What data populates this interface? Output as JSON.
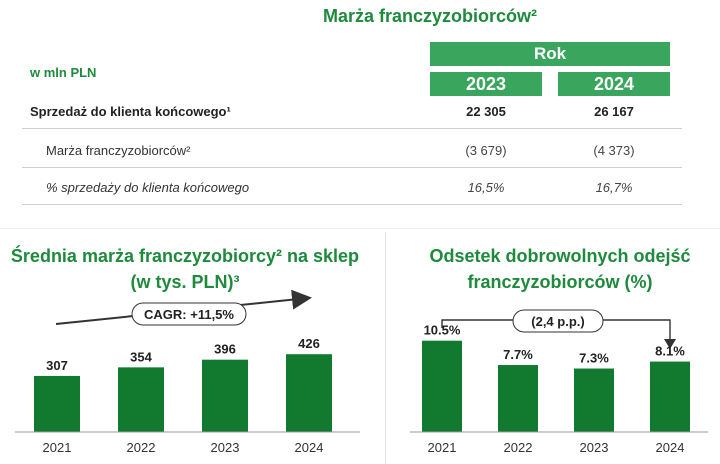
{
  "table": {
    "title": "Marża franczyzobiorców²",
    "year_group": "Rok",
    "years": [
      "2023",
      "2024"
    ],
    "unit": "w mln PLN",
    "rows": [
      {
        "label": "Sprzedaż do klienta końcowego¹",
        "values": [
          "22 305",
          "26 167"
        ],
        "style": "bold"
      },
      {
        "label": "Marża franczyzobiorców²",
        "values": [
          "(3 679)",
          "(4 373)"
        ],
        "style": "normal"
      },
      {
        "label": "% sprzedaży do klienta końcowego",
        "values": [
          "16,5%",
          "16,7%"
        ],
        "style": "italic"
      }
    ]
  },
  "colors": {
    "accent": "#1e8a3c",
    "header_fill": "#3aa55c",
    "bar": "#117a2f"
  },
  "chart_data": [
    {
      "type": "bar",
      "title_line1": "Średnia marża franczyzobiorcy² na sklep",
      "title_line2": "(w tys. PLN)³",
      "categories": [
        "2021",
        "2022",
        "2023",
        "2024"
      ],
      "values": [
        307,
        354,
        396,
        426
      ],
      "labels": [
        "307",
        "354",
        "396",
        "426"
      ],
      "annotation": "CAGR: +11,5%",
      "ylim": [
        0,
        460
      ]
    },
    {
      "type": "bar",
      "title_line1": "Odsetek dobrowolnych odejść",
      "title_line2": "franczyzobiorców (%)",
      "categories": [
        "2021",
        "2022",
        "2023",
        "2024"
      ],
      "values": [
        10.5,
        7.7,
        7.3,
        8.1
      ],
      "labels": [
        "10.5%",
        "7.7%",
        "7.3%",
        "8.1%"
      ],
      "annotation": "(2,4 p.p.)",
      "ylim": [
        0,
        11.5
      ]
    }
  ]
}
